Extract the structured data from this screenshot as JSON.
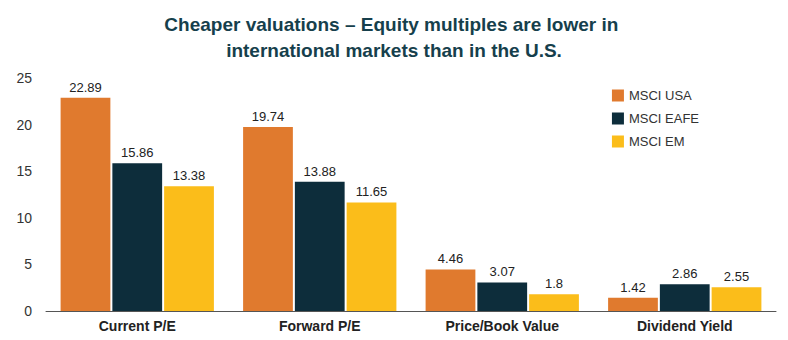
{
  "chart_data": {
    "type": "bar",
    "title": "Cheaper valuations – Equity multiples are lower in international markets than in the U.S.",
    "categories": [
      "Current P/E",
      "Forward P/E",
      "Price/Book Value",
      "Dividend Yield"
    ],
    "series": [
      {
        "name": "MSCI USA",
        "color": "#e07a2e",
        "values": [
          22.89,
          19.74,
          4.46,
          1.42
        ]
      },
      {
        "name": "MSCI EAFE",
        "color": "#0d2d3b",
        "values": [
          15.86,
          13.88,
          3.07,
          2.86
        ]
      },
      {
        "name": "MSCI EM",
        "color": "#fbbd1a",
        "values": [
          13.38,
          11.65,
          1.8,
          2.55
        ]
      }
    ],
    "ylim": [
      0,
      25
    ],
    "yticks": [
      0,
      5,
      10,
      15,
      20,
      25
    ],
    "grid": false,
    "legend": "top-right",
    "data_labels": true
  }
}
